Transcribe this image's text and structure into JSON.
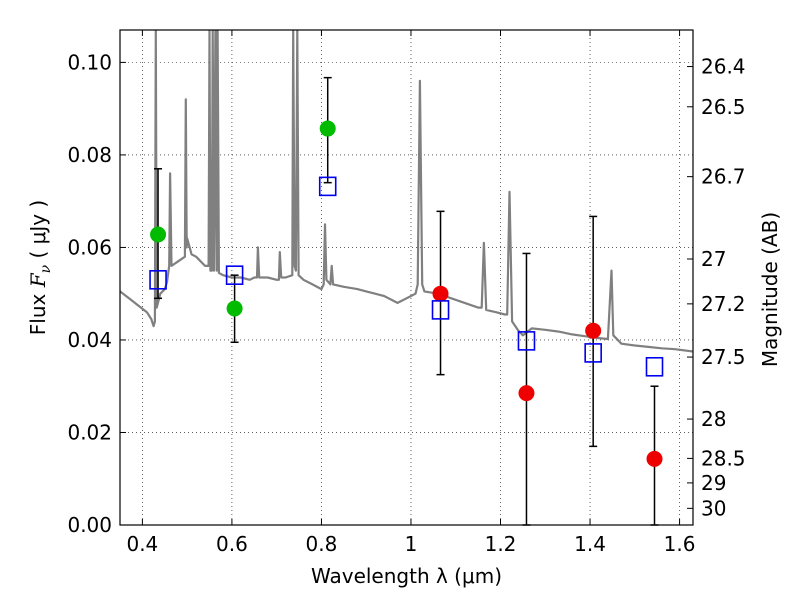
{
  "chart_data": {
    "type": "scatter",
    "xlabel": "Wavelength  λ (μm)",
    "ylabel_left": "Flux  F_ν  ( μJy )",
    "ylabel_right": "Magnitude (AB)",
    "xlim": [
      0.35,
      1.63
    ],
    "ylim": [
      0.0,
      0.107
    ],
    "grid": true,
    "x_ticks": [
      0.4,
      0.6,
      0.8,
      1.0,
      1.2,
      1.4,
      1.6
    ],
    "x_tick_labels": [
      "0.4",
      "0.6",
      "0.8",
      "1",
      "1.2",
      "1.4",
      "1.6"
    ],
    "y_ticks": [
      0.0,
      0.02,
      0.04,
      0.06,
      0.08,
      0.1
    ],
    "y_tick_labels": [
      "0.00",
      "0.02",
      "0.04",
      "0.06",
      "0.08",
      "0.10"
    ],
    "right_ticks": [
      {
        "flux": 0.0991,
        "label": "26.4"
      },
      {
        "flux": 0.0904,
        "label": "26.5"
      },
      {
        "flux": 0.0753,
        "label": "26.7"
      },
      {
        "flux": 0.0575,
        "label": "27"
      },
      {
        "flux": 0.0478,
        "label": "27.2"
      },
      {
        "flux": 0.0363,
        "label": "27.5"
      },
      {
        "flux": 0.0229,
        "label": "28"
      },
      {
        "flux": 0.0144,
        "label": "28.5"
      },
      {
        "flux": 0.0091,
        "label": "29"
      },
      {
        "flux": 0.0036,
        "label": "30"
      }
    ],
    "series": [
      {
        "name": "green detections",
        "color": "#00bb00",
        "marker": "circle",
        "points": [
          {
            "x": 0.435,
            "y": 0.0628,
            "yerr_low": 0.049,
            "yerr_high": 0.077
          },
          {
            "x": 0.606,
            "y": 0.0468,
            "yerr_low": 0.0395,
            "yerr_high": 0.054
          },
          {
            "x": 0.814,
            "y": 0.0857,
            "yerr_low": 0.074,
            "yerr_high": 0.0967
          }
        ]
      },
      {
        "name": "red measurements",
        "color": "#ee0000",
        "marker": "circle",
        "points": [
          {
            "x": 1.066,
            "y": 0.05,
            "yerr_low": 0.0325,
            "yerr_high": 0.0678
          },
          {
            "x": 1.258,
            "y": 0.0285,
            "yerr_low": 0.0,
            "yerr_high": 0.0587
          },
          {
            "x": 1.407,
            "y": 0.042,
            "yerr_low": 0.017,
            "yerr_high": 0.0667
          },
          {
            "x": 1.544,
            "y": 0.0143,
            "yerr_low": 0.0,
            "yerr_high": 0.03
          }
        ]
      },
      {
        "name": "model band fluxes",
        "color": "#0000ee",
        "marker": "open-square",
        "points": [
          {
            "x": 0.435,
            "y": 0.053
          },
          {
            "x": 0.606,
            "y": 0.054
          },
          {
            "x": 0.814,
            "y": 0.0732
          },
          {
            "x": 1.066,
            "y": 0.0465
          },
          {
            "x": 1.258,
            "y": 0.0398
          },
          {
            "x": 1.407,
            "y": 0.0372
          },
          {
            "x": 1.544,
            "y": 0.0342
          }
        ]
      }
    ],
    "model_spectrum": {
      "name": "SED model",
      "color": "#808080",
      "points": [
        [
          0.35,
          0.0505
        ],
        [
          0.37,
          0.049
        ],
        [
          0.39,
          0.0475
        ],
        [
          0.41,
          0.046
        ],
        [
          0.42,
          0.0445
        ],
        [
          0.425,
          0.043
        ],
        [
          0.428,
          0.044
        ],
        [
          0.43,
          0.107
        ],
        [
          0.432,
          0.047
        ],
        [
          0.44,
          0.05
        ],
        [
          0.45,
          0.051
        ],
        [
          0.455,
          0.0525
        ],
        [
          0.46,
          0.056
        ],
        [
          0.462,
          0.076
        ],
        [
          0.465,
          0.056
        ],
        [
          0.48,
          0.057
        ],
        [
          0.495,
          0.058
        ],
        [
          0.497,
          0.092
        ],
        [
          0.499,
          0.06
        ],
        [
          0.5,
          0.062
        ],
        [
          0.51,
          0.0585
        ],
        [
          0.52,
          0.058
        ],
        [
          0.53,
          0.057
        ],
        [
          0.54,
          0.056
        ],
        [
          0.548,
          0.056
        ],
        [
          0.55,
          0.107
        ],
        [
          0.552,
          0.055
        ],
        [
          0.555,
          0.055
        ],
        [
          0.557,
          0.107
        ],
        [
          0.56,
          0.055
        ],
        [
          0.563,
          0.107
        ],
        [
          0.566,
          0.055
        ],
        [
          0.568,
          0.107
        ],
        [
          0.571,
          0.0545
        ],
        [
          0.58,
          0.054
        ],
        [
          0.6,
          0.0535
        ],
        [
          0.62,
          0.0535
        ],
        [
          0.64,
          0.053
        ],
        [
          0.65,
          0.0535
        ],
        [
          0.656,
          0.0535
        ],
        [
          0.658,
          0.06
        ],
        [
          0.661,
          0.0535
        ],
        [
          0.68,
          0.0535
        ],
        [
          0.7,
          0.053
        ],
        [
          0.705,
          0.053
        ],
        [
          0.707,
          0.059
        ],
        [
          0.71,
          0.0535
        ],
        [
          0.72,
          0.0535
        ],
        [
          0.735,
          0.054
        ],
        [
          0.737,
          0.107
        ],
        [
          0.74,
          0.056
        ],
        [
          0.743,
          0.055
        ],
        [
          0.746,
          0.107
        ],
        [
          0.749,
          0.054
        ],
        [
          0.76,
          0.053
        ],
        [
          0.78,
          0.052
        ],
        [
          0.8,
          0.051
        ],
        [
          0.805,
          0.052
        ],
        [
          0.808,
          0.065
        ],
        [
          0.811,
          0.053
        ],
        [
          0.82,
          0.052
        ],
        [
          0.823,
          0.056
        ],
        [
          0.826,
          0.052
        ],
        [
          0.85,
          0.0515
        ],
        [
          0.88,
          0.051
        ],
        [
          0.9,
          0.0505
        ],
        [
          0.92,
          0.05
        ],
        [
          0.94,
          0.0495
        ],
        [
          0.95,
          0.049
        ],
        [
          0.96,
          0.0485
        ],
        [
          0.97,
          0.048
        ],
        [
          0.98,
          0.0485
        ],
        [
          0.99,
          0.049
        ],
        [
          1.0,
          0.0495
        ],
        [
          1.01,
          0.05
        ],
        [
          1.015,
          0.052
        ],
        [
          1.02,
          0.096
        ],
        [
          1.025,
          0.052
        ],
        [
          1.03,
          0.0505
        ],
        [
          1.06,
          0.05
        ],
        [
          1.09,
          0.049
        ],
        [
          1.12,
          0.048
        ],
        [
          1.15,
          0.047
        ],
        [
          1.158,
          0.047
        ],
        [
          1.163,
          0.061
        ],
        [
          1.168,
          0.0465
        ],
        [
          1.19,
          0.046
        ],
        [
          1.21,
          0.0455
        ],
        [
          1.215,
          0.0455
        ],
        [
          1.22,
          0.072
        ],
        [
          1.226,
          0.044
        ],
        [
          1.24,
          0.042
        ],
        [
          1.25,
          0.041
        ],
        [
          1.27,
          0.0425
        ],
        [
          1.3,
          0.0422
        ],
        [
          1.33,
          0.0418
        ],
        [
          1.36,
          0.0412
        ],
        [
          1.39,
          0.0408
        ],
        [
          1.42,
          0.0404
        ],
        [
          1.44,
          0.0402
        ],
        [
          1.448,
          0.055
        ],
        [
          1.452,
          0.041
        ],
        [
          1.47,
          0.0392
        ],
        [
          1.5,
          0.0388
        ],
        [
          1.53,
          0.0385
        ],
        [
          1.56,
          0.0382
        ],
        [
          1.59,
          0.038
        ],
        [
          1.63,
          0.0375
        ]
      ]
    }
  }
}
